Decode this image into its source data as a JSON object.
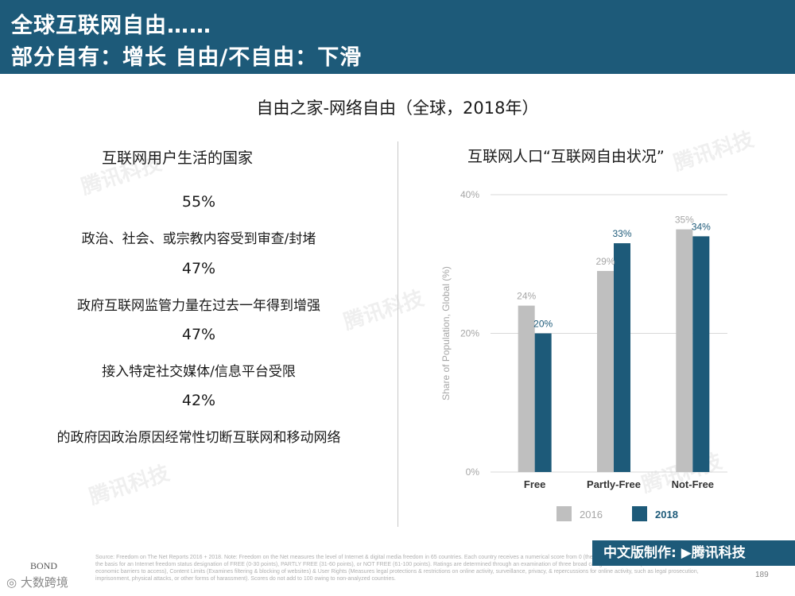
{
  "header": {
    "line1": "全球互联网自由……",
    "line2": "部分自有：增长 自由/不自由：下滑"
  },
  "subtitle": "自由之家-网络自由（全球，2018年）",
  "left": {
    "heading": "互联网用户生活的国家",
    "stats": [
      {
        "value": "55%",
        "label": "政治、社会、或宗教内容受到审查/封堵"
      },
      {
        "value": "47%",
        "label": "政府互联网监管力量在过去一年得到增强"
      },
      {
        "value": "47%",
        "label": "接入特定社交媒体/信息平台受限"
      },
      {
        "value": "42%",
        "label": "的政府因政治原因经常性切断互联网和移动网络"
      }
    ]
  },
  "right": {
    "heading": "互联网人口“互联网自由状况”"
  },
  "chart_data": {
    "type": "bar",
    "title": "互联网人口“互联网自由状况”",
    "categories": [
      "Free",
      "Partly-Free",
      "Not-Free"
    ],
    "series": [
      {
        "name": "2016",
        "values": [
          24,
          29,
          35
        ],
        "color": "#bfbfbf",
        "label_color": "#a6a6a6"
      },
      {
        "name": "2018",
        "values": [
          20,
          33,
          34
        ],
        "color": "#1d5a79",
        "label_color": "#1d5a79"
      }
    ],
    "ylabel": "Share of Population, Global (%)",
    "ylim": [
      0,
      40
    ],
    "yticks": [
      0,
      20,
      40
    ],
    "ytick_labels": [
      "0%",
      "20%",
      "40%"
    ],
    "value_format": "%",
    "grid": true,
    "legend_position": "bottom-center"
  },
  "footer": {
    "source": "Source: Freedom on The Net Reports 2016 + 2018. Note: Freedom on the Net measures the level of Internet & digital media freedom in 65 countries. Each country receives a numerical score from 0 (the most free) to 100 (the least free), which serves as the basis for an Internet freedom status designation of FREE (0-30 points), PARTLY FREE (31-60 points), or NOT FREE (61-100 points). Ratings are determined through an examination of three broad categories -- Access (Assesses infrastructural & economic barriers to access), Content Limits (Examines filtering & blocking of websites) & User Rights (Measures legal protections & restrictions on online activity, surveillance, privacy, & repercussions for online activity, such as legal prosecution, imprisonment, physical attacks, or other forms of harassment). Scores do not add to 100 owing to non-analyzed countries.",
    "badge": "中文版制作: ▶腾讯科技",
    "page_number": "189",
    "bond": "BOND",
    "wechat": "◎ 大数跨境",
    "watermark": "腾讯科技"
  },
  "colors": {
    "header_bg": "#1d5a79",
    "series_2016": "#bfbfbf",
    "series_2018": "#1d5a79"
  }
}
